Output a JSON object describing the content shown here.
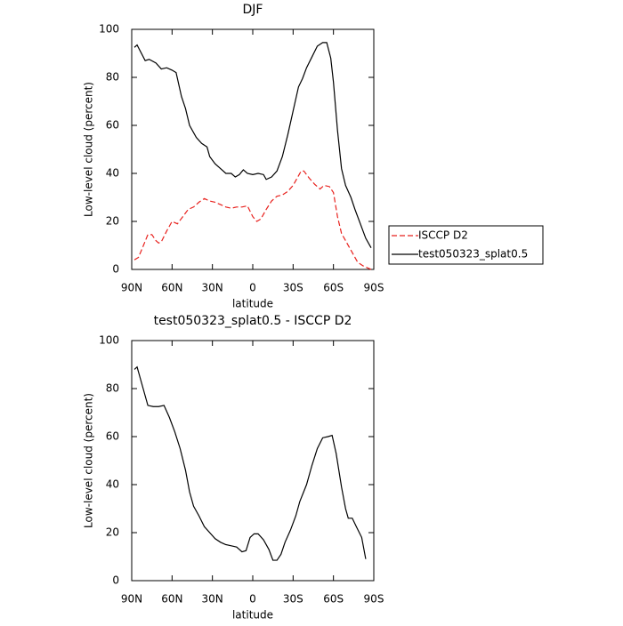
{
  "chart_data": [
    {
      "type": "line",
      "title": "DJF",
      "xlabel": "latitude",
      "ylabel": "Low-level cloud (percent)",
      "xlim": [
        90,
        -90
      ],
      "ylim": [
        0,
        100
      ],
      "xticks": [
        {
          "value": 90,
          "label": "90N"
        },
        {
          "value": 60,
          "label": "60N"
        },
        {
          "value": 30,
          "label": "30N"
        },
        0,
        {
          "value": -30,
          "label": "30S"
        },
        {
          "value": -60,
          "label": "60S"
        },
        {
          "value": -90,
          "label": "90S"
        }
      ],
      "yticks": [
        0,
        20,
        40,
        60,
        80,
        100
      ],
      "legend": "right",
      "series": [
        {
          "name": "ISCCP D2",
          "color": "#e8211d",
          "dashed": true,
          "x": [
            88,
            85,
            82,
            78,
            75,
            72,
            70,
            68,
            64,
            60,
            56,
            52,
            48,
            44,
            40,
            36,
            32,
            28,
            24,
            20,
            16,
            12,
            8,
            4,
            0,
            -3,
            -6,
            -10,
            -14,
            -18,
            -22,
            -26,
            -30,
            -34,
            -36,
            -38,
            -42,
            -46,
            -50,
            -53,
            -57,
            -60,
            -63,
            -66,
            -70,
            -74,
            -78,
            -82,
            -86,
            -88
          ],
          "values": [
            4,
            5,
            9,
            14.5,
            14.5,
            12,
            11,
            11.5,
            16,
            20,
            19,
            22,
            25,
            26,
            28,
            29.5,
            28.5,
            28,
            27,
            26,
            25.5,
            26,
            26,
            26.5,
            22,
            20,
            21,
            25,
            28.5,
            30.5,
            31,
            32.5,
            35,
            39,
            41,
            41,
            38,
            35.5,
            33.5,
            35,
            34.5,
            32,
            22,
            15,
            11,
            7,
            3,
            1.5,
            0.5,
            0
          ]
        },
        {
          "name": "test050323_splat0.5",
          "color": "#000000",
          "dashed": false,
          "x": [
            88,
            86,
            80,
            77,
            72,
            68,
            64,
            60,
            57,
            53,
            50,
            47,
            42,
            38,
            34,
            32,
            28,
            24,
            20,
            16,
            13,
            10,
            7,
            4,
            0,
            -4,
            -8,
            -10,
            -14,
            -18,
            -22,
            -26,
            -30,
            -34,
            -37,
            -40,
            -44,
            -48,
            -52,
            -55,
            -58,
            -60,
            -63,
            -66,
            -69,
            -73,
            -76,
            -80,
            -84,
            -88
          ],
          "values": [
            92.5,
            93.5,
            87,
            87.5,
            86,
            83.5,
            84,
            83,
            82,
            72,
            67,
            60,
            55,
            52.5,
            51,
            47,
            44,
            42,
            40,
            40,
            38.5,
            39.5,
            41.5,
            40,
            39.5,
            40,
            39.5,
            37.5,
            38.5,
            41,
            47,
            56,
            66,
            76,
            79.5,
            84,
            88.5,
            93,
            94.5,
            94.5,
            88,
            78,
            58,
            42,
            35,
            30,
            25,
            19,
            13,
            9
          ]
        }
      ]
    },
    {
      "type": "line",
      "title": "test050323_splat0.5 - ISCCP D2",
      "xlabel": "latitude",
      "ylabel": "Low-level cloud (percent)",
      "xlim": [
        90,
        -90
      ],
      "ylim": [
        0,
        100
      ],
      "xticks": [
        {
          "value": 90,
          "label": "90N"
        },
        {
          "value": 60,
          "label": "60N"
        },
        {
          "value": 30,
          "label": "30N"
        },
        0,
        {
          "value": -30,
          "label": "30S"
        },
        {
          "value": -60,
          "label": "60S"
        },
        {
          "value": -90,
          "label": "90S"
        }
      ],
      "yticks": [
        0,
        20,
        40,
        60,
        80,
        100
      ],
      "color": "#000000",
      "x": [
        88,
        86,
        84,
        80,
        78,
        74,
        70,
        66,
        62,
        58,
        54,
        50,
        47,
        44,
        40,
        36,
        32,
        28,
        24,
        20,
        16,
        12,
        8,
        5,
        2,
        -1,
        -4,
        -8,
        -12,
        -15,
        -18,
        -21,
        -24,
        -28,
        -32,
        -35,
        -40,
        -44,
        -48,
        -52,
        -56,
        -59,
        -62,
        -66,
        -69,
        -71,
        -74,
        -77,
        -81,
        -84
      ],
      "values": [
        88,
        89,
        85,
        77,
        73,
        72.5,
        72.5,
        73,
        68,
        62,
        55,
        46,
        37,
        31,
        27,
        22.5,
        20,
        17.5,
        16,
        15,
        14.5,
        14,
        12,
        12.5,
        18,
        19.5,
        19.5,
        17,
        13,
        8.5,
        8.5,
        11,
        16,
        21,
        27,
        33,
        40,
        48,
        55,
        59.5,
        60,
        60.5,
        53,
        39,
        30,
        26,
        26,
        22.5,
        18,
        9
      ]
    }
  ]
}
